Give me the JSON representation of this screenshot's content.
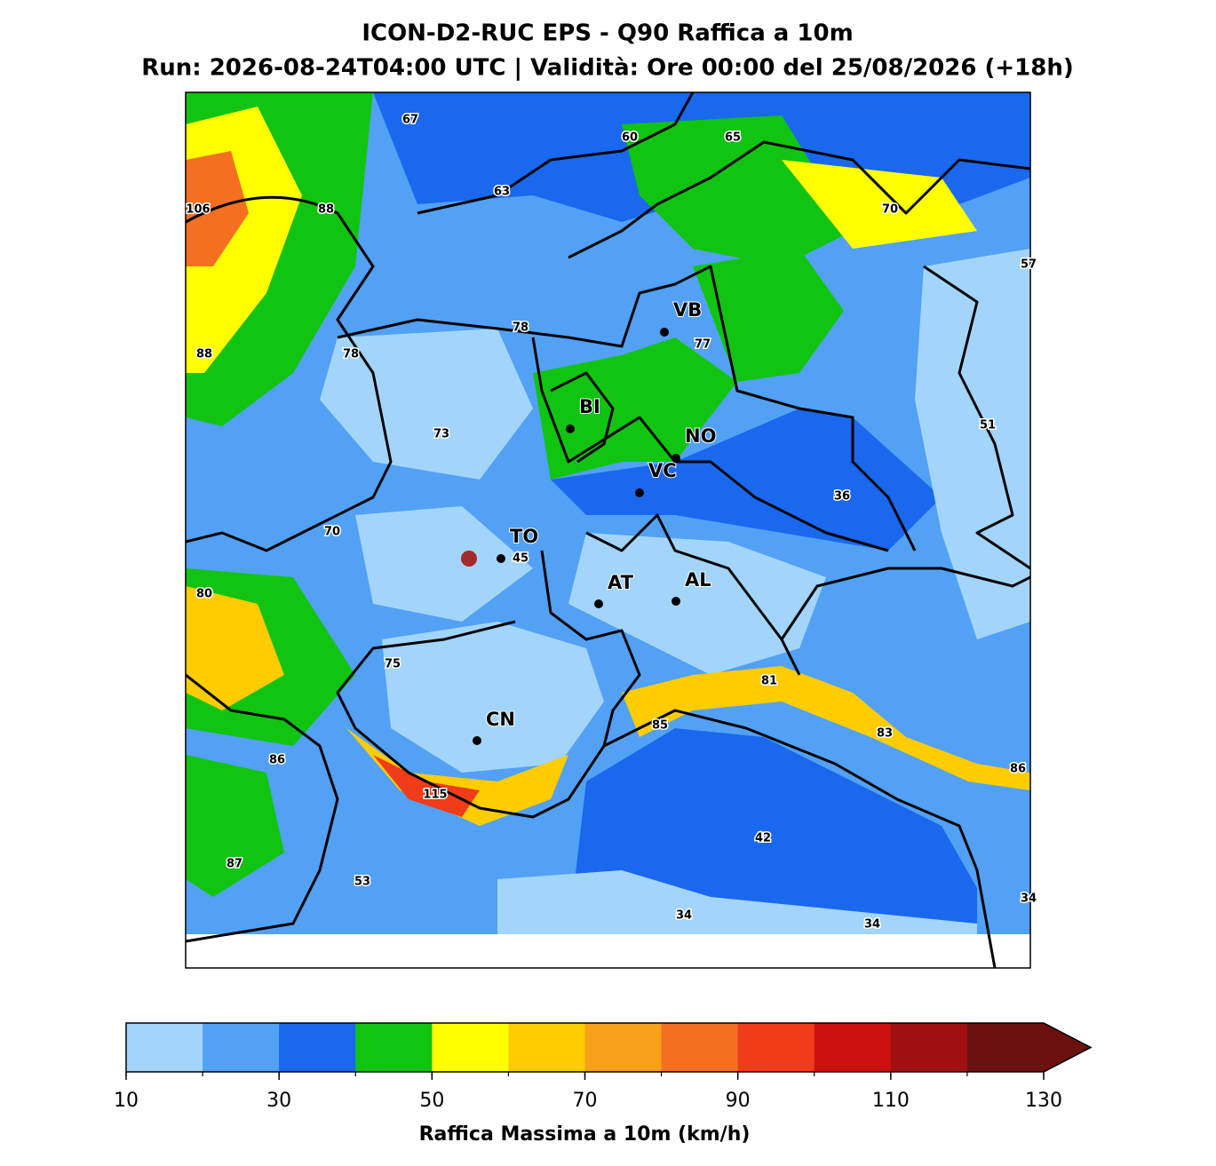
{
  "header": {
    "title": "ICON-D2-RUC EPS - Q90 Raffica a 10m",
    "subtitle": "Run: 2026-08-24T04:00 UTC | Validità: Ore 00:00 del 25/08/2026 (+18h)"
  },
  "map": {
    "cities": [
      "VB",
      "BI",
      "NO",
      "VC",
      "TO",
      "AT",
      "AL",
      "CN"
    ],
    "value_labels": [
      67,
      60,
      65,
      63,
      106,
      88,
      70,
      57,
      78,
      77,
      88,
      78,
      73,
      51,
      36,
      70,
      45,
      80,
      75,
      81,
      85,
      83,
      86,
      86,
      115,
      42,
      87,
      53,
      34,
      34,
      34
    ]
  },
  "colorbar": {
    "levels": [
      10,
      20,
      30,
      40,
      50,
      60,
      70,
      80,
      90,
      100,
      110,
      120,
      130
    ],
    "colors": [
      "#a3d5fb",
      "#52a1f5",
      "#1a68ee",
      "#11c411",
      "#ffff00",
      "#ffcc00",
      "#f9a01a",
      "#f47020",
      "#f03c18",
      "#cc1010",
      "#a01010",
      "#6c1010"
    ],
    "ticks": [
      10,
      30,
      50,
      70,
      90,
      110,
      130
    ],
    "extend": "max",
    "label": "Raffica Massima a 10m (km/h)"
  }
}
